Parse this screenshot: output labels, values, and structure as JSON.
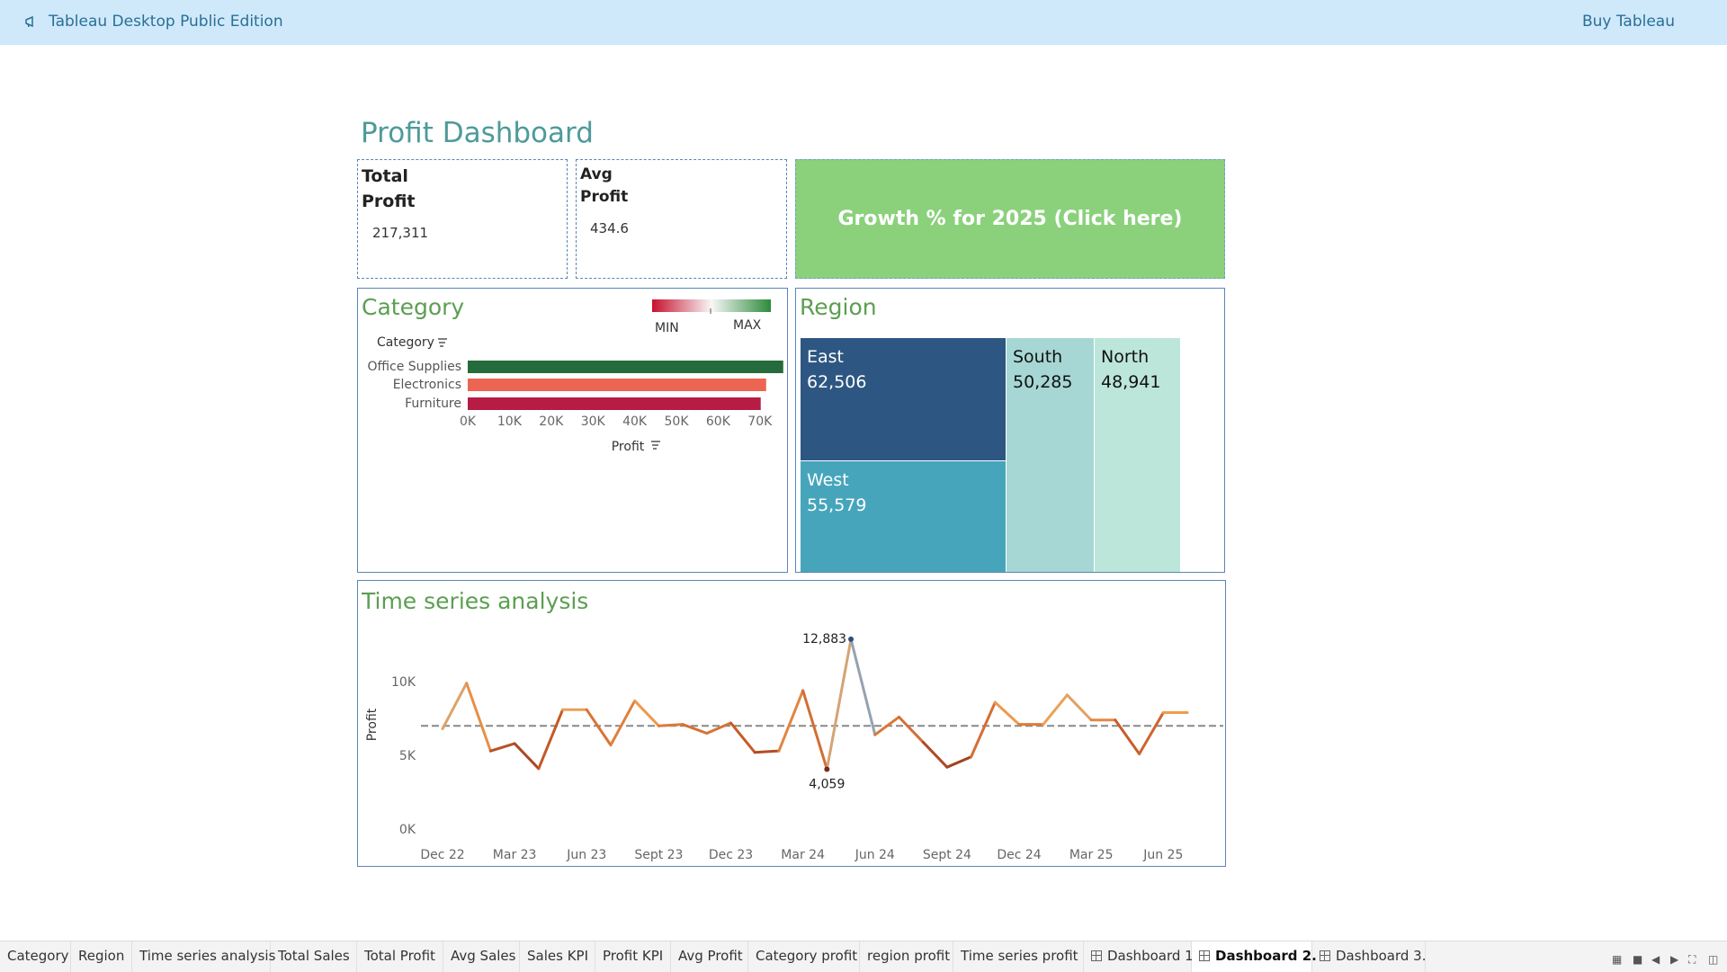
{
  "banner": {
    "title": "Tableau Desktop Public Edition",
    "buy": "Buy Tableau",
    "icon": "megaphone-icon"
  },
  "dashboard": {
    "title": "Profit Dashboard",
    "kpi_total": {
      "label_line1": "Total",
      "label_line2": "Profit",
      "value": "217,311"
    },
    "kpi_avg": {
      "label_line1": "Avg",
      "label_line2": "Profit",
      "value": "434.6"
    },
    "growth_button": "Growth % for 2025 (Click here)"
  },
  "category_panel": {
    "title": "Category",
    "legend_min": "MIN",
    "legend_max": "MAX",
    "header": "Category",
    "axis_title": "Profit"
  },
  "region_panel": {
    "title": "Region"
  },
  "time_panel": {
    "title": "Time series analysis"
  },
  "chart_data": [
    {
      "type": "bar",
      "orientation": "horizontal",
      "categories": [
        "Office Supplies",
        "Electronics",
        "Furniture"
      ],
      "values": [
        75600,
        71500,
        70200
      ],
      "colors": [
        "#256b3c",
        "#ec6552",
        "#b71c45"
      ],
      "xlabel": "Profit",
      "ylabel": "Category",
      "xlim": [
        0,
        75000
      ],
      "ticks": [
        0,
        10000,
        20000,
        30000,
        40000,
        50000,
        60000,
        70000
      ],
      "tick_labels": [
        "0K",
        "10K",
        "20K",
        "30K",
        "40K",
        "50K",
        "60K",
        "70K"
      ],
      "legend": {
        "min": "MIN",
        "max": "MAX",
        "colors": [
          "#c8102e",
          "#f7f7f7",
          "#2c8a3b"
        ]
      }
    },
    {
      "type": "treemap",
      "items": [
        {
          "name": "East",
          "value": "62,506",
          "color": "#2d5782"
        },
        {
          "name": "West",
          "value": "55,579",
          "color": "#46a5bb"
        },
        {
          "name": "South",
          "value": "50,285",
          "color": "#a6d7d4"
        },
        {
          "name": "North",
          "value": "48,941",
          "color": "#bde6db"
        }
      ]
    },
    {
      "type": "line",
      "ylabel": "Profit",
      "ylim": [
        0,
        13000
      ],
      "y_ticks": [
        "0K",
        "5K",
        "10K"
      ],
      "x_ticks": [
        "Dec 22",
        "Mar 23",
        "Jun 23",
        "Sept 23",
        "Dec 23",
        "Mar 24",
        "Jun 24",
        "Sept 24",
        "Dec 24",
        "Mar 25",
        "Jun 25"
      ],
      "x": [
        "Dec 22",
        "Jan 23",
        "Feb 23",
        "Mar 23",
        "Apr 23",
        "May 23",
        "Jun 23",
        "Jul 23",
        "Aug 23",
        "Sept 23",
        "Oct 23",
        "Nov 23",
        "Dec 23",
        "Jan 24",
        "Feb 24",
        "Mar 24",
        "Apr 24",
        "May 24",
        "Jun 24",
        "Jul 24",
        "Aug 24",
        "Sept 24",
        "Oct 24",
        "Nov 24",
        "Dec 24",
        "Jan 25",
        "Feb 25",
        "Mar 25",
        "Apr 25",
        "May 25",
        "Jun 25",
        "Jul 25"
      ],
      "values": [
        6800,
        9900,
        5300,
        5800,
        4100,
        8100,
        8100,
        5700,
        8700,
        7000,
        7100,
        6500,
        7200,
        5200,
        5300,
        9400,
        4059,
        12883,
        6400,
        7600,
        5900,
        4200,
        4900,
        8600,
        7100,
        7100,
        9100,
        7400,
        7400,
        5100,
        7900,
        7900
      ],
      "reference_line": 7000,
      "annotations": [
        {
          "label": "12,883"
        },
        {
          "label": "4,059"
        }
      ]
    }
  ],
  "tabs": [
    {
      "label": "Category",
      "icon": ""
    },
    {
      "label": "Region",
      "icon": ""
    },
    {
      "label": "Time series analysis",
      "icon": ""
    },
    {
      "label": "Total Sales",
      "icon": ""
    },
    {
      "label": "Total Profit",
      "icon": ""
    },
    {
      "label": "Avg Sales",
      "icon": ""
    },
    {
      "label": "Sales KPI",
      "icon": ""
    },
    {
      "label": "Profit KPI",
      "icon": ""
    },
    {
      "label": "Avg Profit",
      "icon": ""
    },
    {
      "label": "Category profit",
      "icon": ""
    },
    {
      "label": "region profit",
      "icon": ""
    },
    {
      "label": "Time series profit",
      "icon": ""
    },
    {
      "label": "Dashboard 1",
      "icon": "dashboard-icon"
    },
    {
      "label": "Dashboard 2.",
      "icon": "dashboard-icon",
      "active": true
    },
    {
      "label": "Dashboard 3.",
      "icon": "dashboard-icon"
    }
  ]
}
